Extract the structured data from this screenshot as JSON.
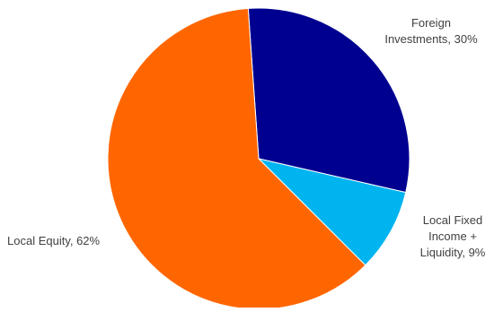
{
  "chart_data": {
    "type": "pie",
    "title": "",
    "slices": [
      {
        "label": "Foreign Investments",
        "value": 30,
        "data_label": [
          "Foreign",
          "Investments, 30%"
        ],
        "color": "#000090"
      },
      {
        "label": "Local Fixed Income + Liquidity",
        "value": 9,
        "data_label": [
          "Local Fixed",
          "Income +",
          "Liquidity, 9%"
        ],
        "color": "#00b4f0"
      },
      {
        "label": "Local Equity",
        "value": 62,
        "data_label": [
          "Local Equity, 62%"
        ],
        "color": "#ff6600"
      }
    ],
    "legend": "none"
  }
}
